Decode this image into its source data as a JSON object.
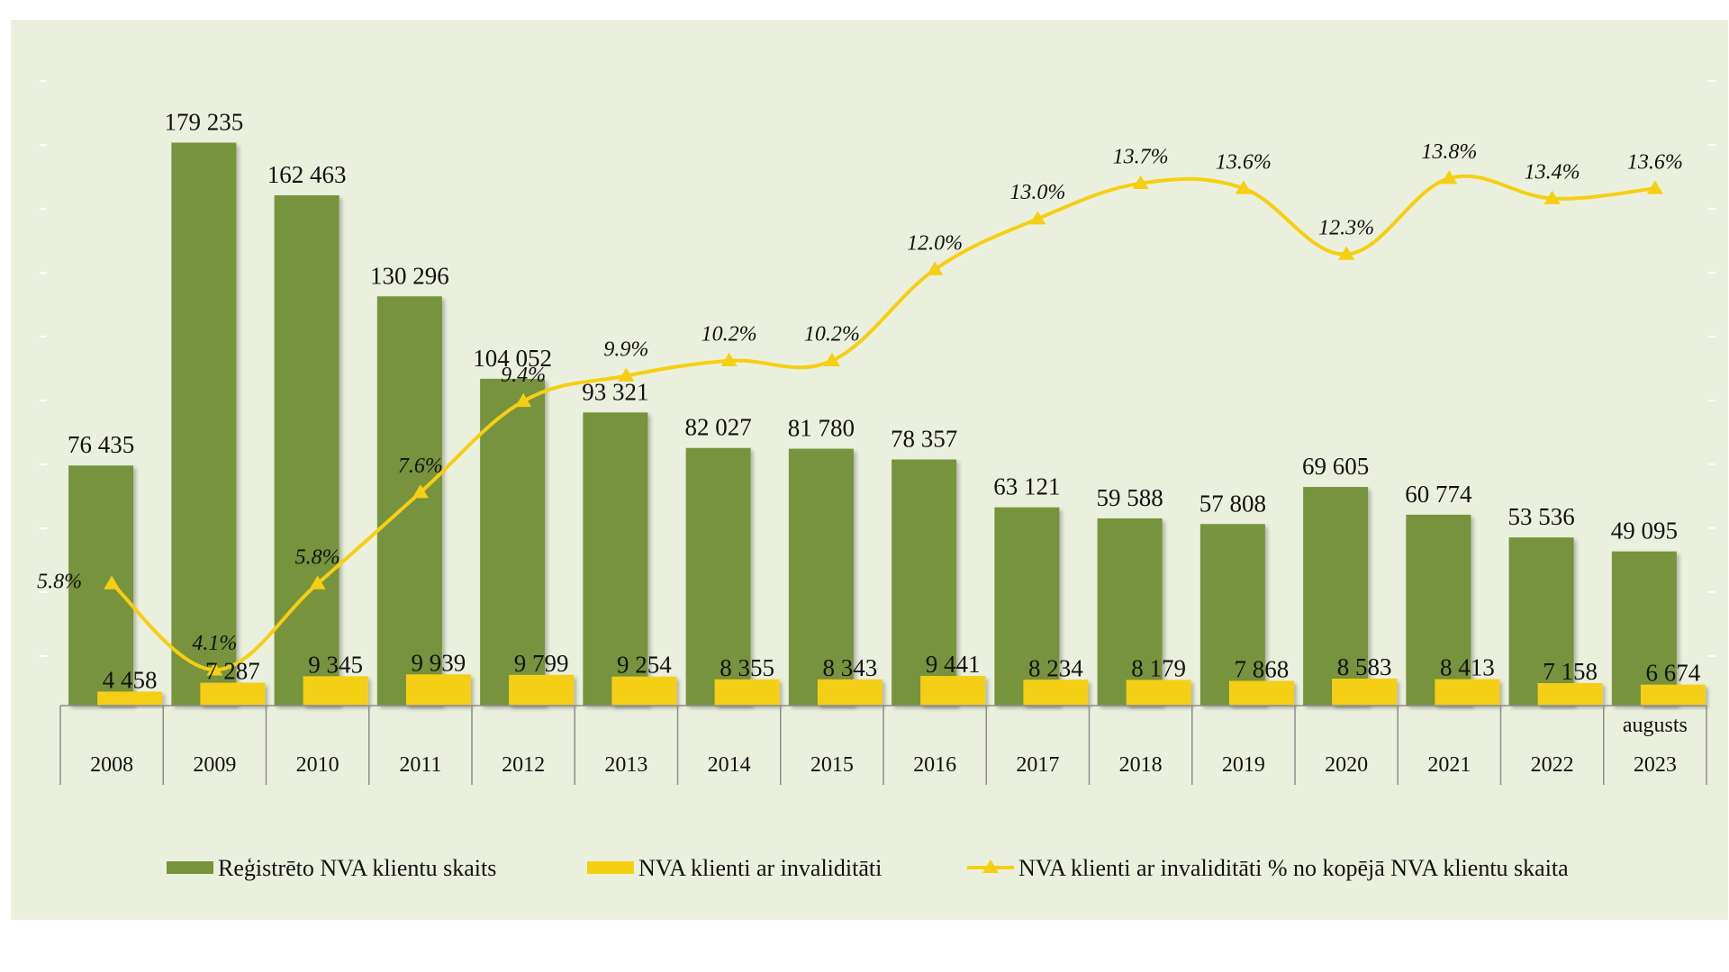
{
  "chart_data": {
    "type": "bar",
    "categories": [
      "2008",
      "2009",
      "2010",
      "2011",
      "2012",
      "2013",
      "2014",
      "2015",
      "2016",
      "2017",
      "2018",
      "2019",
      "2020",
      "2021",
      "2022",
      "2023"
    ],
    "category_notes": [
      "",
      "",
      "",
      "",
      "",
      "",
      "",
      "",
      "",
      "",
      "",
      "",
      "",
      "",
      "",
      "augusts"
    ],
    "series": [
      {
        "name": "Reģistrēto NVA klientu skaits",
        "kind": "bar",
        "color": "#77933c",
        "values": [
          76435,
          179235,
          162463,
          130296,
          104052,
          93321,
          82027,
          81780,
          78357,
          63121,
          59588,
          57808,
          69605,
          60774,
          53536,
          49095
        ],
        "labels": [
          "76 435",
          "179 235",
          "162 463",
          "130 296",
          "104 052",
          "93 321",
          "82 027",
          "81 780",
          "78 357",
          "63 121",
          "59 588",
          "57 808",
          "69 605",
          "60 774",
          "53 536",
          "49 095"
        ]
      },
      {
        "name": "NVA klienti ar invaliditāti",
        "kind": "bar",
        "color": "#f5cf12",
        "values": [
          4458,
          7287,
          9345,
          9939,
          9799,
          9254,
          8355,
          8343,
          9441,
          8234,
          8179,
          7868,
          8583,
          8413,
          7158,
          6674
        ],
        "labels": [
          "4 458",
          "7 287",
          "9 345",
          "9 939",
          "9 799",
          "9 254",
          "8 355",
          "8 343",
          "9 441",
          "8 234",
          "8 179",
          "7 868",
          "8 583",
          "8 413",
          "7 158",
          "6 674"
        ]
      },
      {
        "name": "NVA klienti ar invaliditāti % no kopējā NVA klientu skaita",
        "kind": "line",
        "color": "#f5cf12",
        "marker": "triangle",
        "values": [
          5.8,
          4.1,
          5.8,
          7.6,
          9.4,
          9.9,
          10.2,
          10.2,
          12.0,
          13.0,
          13.7,
          13.6,
          12.3,
          13.8,
          13.4,
          13.6
        ],
        "labels": [
          "5.8%",
          "4.1%",
          "5.8%",
          "7.6%",
          "9.4%",
          "9.9%",
          "10.2%",
          "10.2%",
          "12.0%",
          "13.0%",
          "13.7%",
          "13.6%",
          "12.3%",
          "13.8%",
          "13.4%",
          "13.6%"
        ]
      }
    ],
    "ylim": [
      0,
      200000
    ],
    "ylim_secondary": [
      0,
      16
    ],
    "legend": "bottom",
    "grid": false
  }
}
